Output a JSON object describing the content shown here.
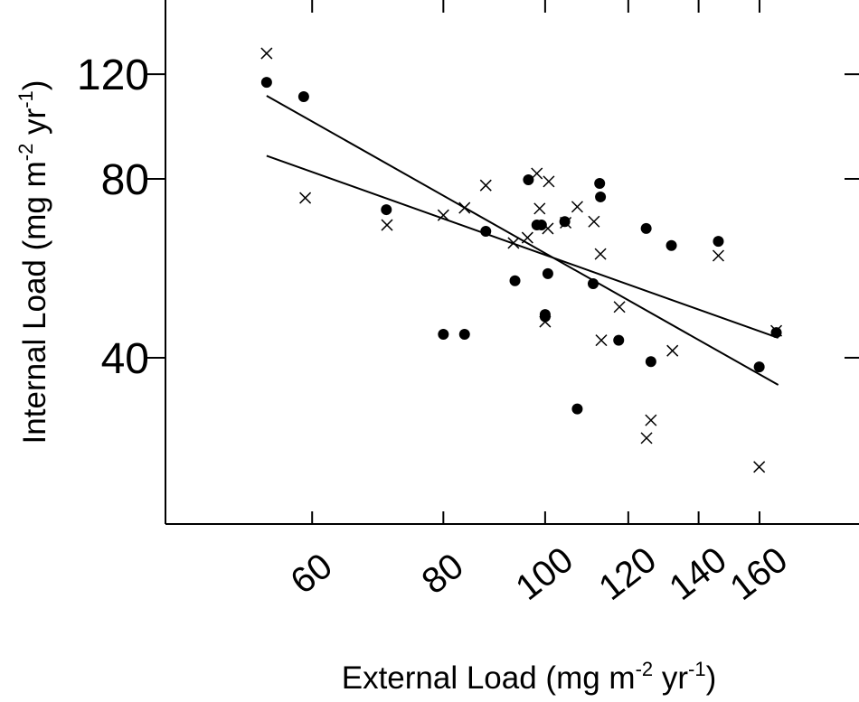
{
  "chart_data": {
    "type": "scatter",
    "x_label": [
      "External Load (mg m",
      "-2",
      " yr",
      "-1",
      ")"
    ],
    "y_label": [
      "Internal Load (mg m",
      "-2",
      " yr",
      "-1",
      ")"
    ],
    "xlog": true,
    "ylog": true,
    "xlim": [
      43.5,
      199
    ],
    "ylim": [
      21,
      160
    ],
    "xticks": [
      60,
      80,
      100,
      120,
      140,
      160
    ],
    "yticks": [
      40,
      80,
      120
    ],
    "series": [
      {
        "marker": "dot",
        "color": "#000000",
        "x": [
          54.3,
          58.9,
          70.6,
          87.8,
          80,
          83.8,
          96.4,
          98.2,
          99.2,
          93.6,
          100.6,
          100,
          100,
          104.4,
          112.7,
          112.9,
          111.1,
          107.3,
          117.5,
          124.8,
          126.1,
          131.9,
          146.2,
          159.9,
          166
        ],
        "values": [
          116.3,
          110,
          71,
          65.3,
          43.8,
          43.8,
          79.7,
          66.9,
          66.9,
          53.9,
          55.4,
          47.3,
          46.9,
          67.8,
          78.6,
          74.6,
          53.3,
          32.8,
          42.8,
          66,
          39.4,
          61.8,
          62.8,
          38.6,
          44.1
        ]
      },
      {
        "marker": "cross",
        "color": "#000000",
        "x": [
          54.3,
          59.1,
          70.7,
          80,
          83.8,
          87.8,
          93.3,
          96.2,
          98.2,
          98.8,
          100.8,
          100.6,
          100,
          104.6,
          107.3,
          111.3,
          112.9,
          117.7,
          113.1,
          132.2,
          126.1,
          124.9,
          146.2,
          159.9,
          166
        ],
        "values": [
          130.1,
          74.3,
          66.9,
          69.5,
          71.5,
          78,
          62.4,
          63.7,
          81.7,
          71.3,
          79.2,
          66,
          46,
          67.5,
          71.8,
          67.8,
          59.8,
          48.7,
          42.8,
          41.1,
          31.4,
          29.3,
          59.4,
          26.2,
          44.4
        ]
      },
      {
        "marker": "line",
        "color": "#000000",
        "x": [
          54.3,
          166.7
        ],
        "values": [
          110.4,
          36
        ]
      },
      {
        "marker": "line",
        "color": "#000000",
        "x": [
          54.3,
          166.7
        ],
        "values": [
          87.5,
          43.2
        ]
      }
    ]
  }
}
